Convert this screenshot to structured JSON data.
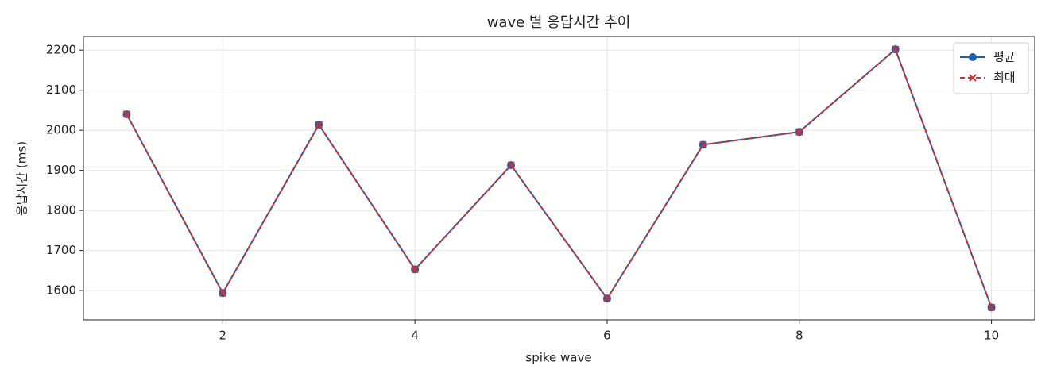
{
  "chart_data": {
    "type": "line",
    "title": "wave 별 응답시간 추이",
    "xlabel": "spike wave",
    "ylabel": "응답시간 (ms)",
    "x": [
      1,
      2,
      3,
      4,
      5,
      6,
      7,
      8,
      9,
      10
    ],
    "series": [
      {
        "name": "평균",
        "color": "#1f5fad",
        "linestyle": "solid",
        "marker": "circle",
        "values": [
          2040,
          1594,
          2014,
          1653,
          1913,
          1580,
          1964,
          1996,
          2202,
          1558
        ]
      },
      {
        "name": "최대",
        "color": "#d03030",
        "linestyle": "dashed",
        "marker": "x",
        "values": [
          2040,
          1594,
          2014,
          1653,
          1913,
          1580,
          1964,
          1996,
          2202,
          1558
        ]
      }
    ],
    "xlim": [
      0.55,
      10.45
    ],
    "xticks": [
      2,
      4,
      6,
      8,
      10
    ],
    "ylim": [
      1527,
      2234
    ],
    "yticks": [
      1600,
      1700,
      1800,
      1900,
      2000,
      2100,
      2200
    ],
    "grid": true,
    "legend": "upper right"
  }
}
